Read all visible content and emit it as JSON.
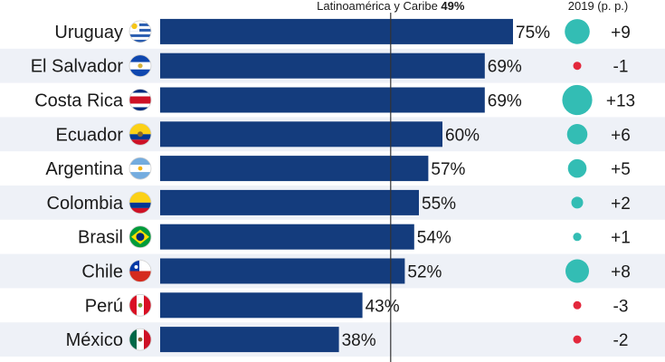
{
  "chart_data": {
    "type": "bar",
    "orientation": "horizontal",
    "categories": [
      "Uruguay",
      "El Salvador",
      "Costa Rica",
      "Ecuador",
      "Argentina",
      "Colombia",
      "Brasil",
      "Chile",
      "Perú",
      "México"
    ],
    "values": [
      75,
      69,
      69,
      60,
      57,
      55,
      54,
      52,
      43,
      38
    ],
    "value_labels": [
      "75%",
      "69%",
      "69%",
      "60%",
      "57%",
      "55%",
      "54%",
      "52%",
      "43%",
      "38%"
    ],
    "changes": [
      9,
      -1,
      13,
      6,
      5,
      2,
      1,
      8,
      -3,
      -2
    ],
    "change_labels": [
      "+9",
      "-1",
      "+13",
      "+6",
      "+5",
      "+2",
      "+1",
      "+8",
      "-3",
      "-2"
    ],
    "xlim": [
      0,
      100
    ],
    "reference": {
      "value": 49,
      "label_prefix": "Latinoamérica y Caribe ",
      "label_value": "49%"
    },
    "change_header": "2019 (p. p.)",
    "colors": {
      "bar": "#143c7d",
      "positive": "#33bdb4",
      "negative": "#e3283c",
      "row_alt": "#eef1f7",
      "reference_line": "#333333"
    },
    "flags": [
      "uruguay-flag",
      "el-salvador-flag",
      "costa-rica-flag",
      "ecuador-flag",
      "argentina-flag",
      "colombia-flag",
      "brasil-flag",
      "chile-flag",
      "peru-flag",
      "mexico-flag"
    ]
  }
}
